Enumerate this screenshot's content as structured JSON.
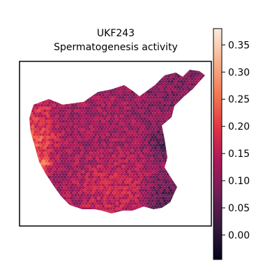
{
  "chart_data": {
    "type": "heatmap",
    "title": "UKF243",
    "subtitle": "Spermatogenesis activity",
    "xlabel": "",
    "ylabel": "",
    "grid": false,
    "colormap": "rocket",
    "colormap_stops": [
      "#03051a",
      "#35193e",
      "#701f57",
      "#ad1759",
      "#e13342",
      "#f37651",
      "#f6b48f",
      "#faebdd"
    ],
    "colorbar": {
      "vmin": -0.045,
      "vmax": 0.38,
      "ticks": [
        0.0,
        0.05,
        0.1,
        0.15,
        0.2,
        0.25,
        0.3,
        0.35
      ],
      "tick_labels": [
        "0.00",
        "0.05",
        "0.10",
        "0.15",
        "0.20",
        "0.25",
        "0.30",
        "0.35"
      ]
    },
    "regions": [
      {
        "region": "left rim (outer strip)",
        "value": 0.3
      },
      {
        "region": "left rim (inner strip)",
        "value": 0.22
      },
      {
        "region": "upper-left lobe",
        "value": 0.2
      },
      {
        "region": "central tissue",
        "value": 0.12
      },
      {
        "region": "lower-central patch",
        "value": 0.19
      },
      {
        "region": "right arm",
        "value": 0.08
      },
      {
        "region": "bottom-right tail",
        "value": 0.03
      },
      {
        "region": "right edge",
        "value": 0.01
      }
    ],
    "value_range": [
      -0.04,
      0.37
    ]
  }
}
